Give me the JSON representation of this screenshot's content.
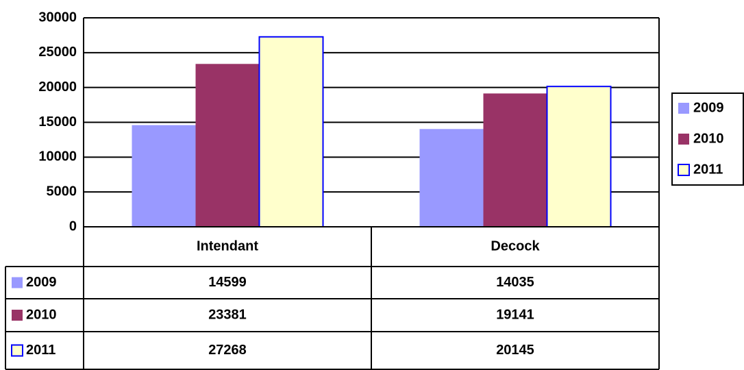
{
  "chart_data": {
    "type": "bar",
    "categories": [
      "Intendant",
      "Decock"
    ],
    "series": [
      {
        "name": "2009",
        "color": "#9999ff",
        "values": [
          14599,
          14035
        ]
      },
      {
        "name": "2010",
        "color": "#993366",
        "values": [
          23381,
          19141
        ]
      },
      {
        "name": "2011",
        "color": "#ffffcc",
        "edge_color": "#0000ff",
        "values": [
          27268,
          20145
        ]
      }
    ],
    "ylim": [
      0,
      30000
    ],
    "yticks": [
      0,
      5000,
      10000,
      15000,
      20000,
      25000,
      30000
    ],
    "grid": true,
    "legend": "right",
    "data_table": true
  }
}
